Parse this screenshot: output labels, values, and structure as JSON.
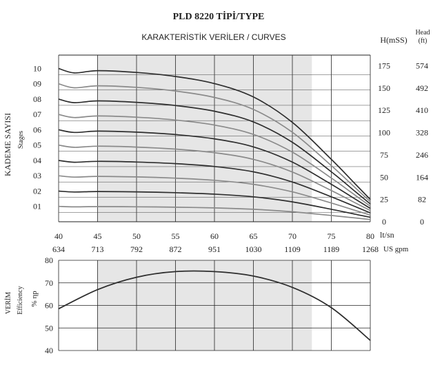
{
  "title": "PLD 8220 TİPİ/TYPE",
  "chart_data": [
    {
      "type": "line",
      "title": "KARAKTERİSTİK VERİLER / CURVES",
      "ylabel_left": "KADEME SAYISI",
      "ylabel_left_sub": "Stages",
      "ylabel_right_m": "H(mSS)",
      "ylabel_right_ft": "Head (ft)",
      "xlabel_lts": "lt/sn",
      "xlabel_gpm": "US gpm",
      "x_ticks_lts": [
        "40",
        "45",
        "50",
        "55",
        "60",
        "65",
        "70",
        "75",
        "80"
      ],
      "x_ticks_gpm": [
        "634",
        "713",
        "792",
        "872",
        "951",
        "1030",
        "1109",
        "1189",
        "1268"
      ],
      "h_ticks_m": [
        "175",
        "150",
        "125",
        "100",
        "75",
        "50",
        "25",
        "0"
      ],
      "h_ticks_ft": [
        "574",
        "492",
        "410",
        "328",
        "246",
        "164",
        "82",
        "0"
      ],
      "stage_labels": [
        "10",
        "09",
        "08",
        "07",
        "06",
        "05",
        "04",
        "03",
        "02",
        "01"
      ],
      "xlim": [
        40,
        80
      ],
      "ylim": [
        0,
        187
      ],
      "highlight_range": [
        45,
        72.5
      ],
      "grid": true,
      "series": [
        {
          "name": "10",
          "x": [
            40,
            42,
            45,
            50,
            55,
            60,
            65,
            70,
            75,
            78,
            80
          ],
          "y": [
            172.0,
            167.0,
            169.5,
            167.5,
            163.0,
            155.0,
            140.0,
            111.5,
            70.0,
            43.0,
            25.0
          ]
        },
        {
          "name": "09",
          "x": [
            40,
            42,
            45,
            50,
            55,
            60,
            65,
            70,
            75,
            78,
            80
          ],
          "y": [
            154.8,
            150.3,
            152.5,
            150.8,
            146.7,
            139.5,
            126.0,
            100.4,
            63.0,
            38.7,
            22.5
          ]
        },
        {
          "name": "08",
          "x": [
            40,
            42,
            45,
            50,
            55,
            60,
            65,
            70,
            75,
            78,
            80
          ],
          "y": [
            137.6,
            133.6,
            135.6,
            134.0,
            130.4,
            124.0,
            112.0,
            89.2,
            56.0,
            34.4,
            20.0
          ]
        },
        {
          "name": "07",
          "x": [
            40,
            42,
            45,
            50,
            55,
            60,
            65,
            70,
            75,
            78,
            80
          ],
          "y": [
            120.4,
            116.9,
            118.7,
            117.3,
            114.1,
            108.5,
            98.0,
            78.1,
            49.0,
            30.1,
            17.5
          ]
        },
        {
          "name": "06",
          "x": [
            40,
            42,
            45,
            50,
            55,
            60,
            65,
            70,
            75,
            78,
            80
          ],
          "y": [
            103.2,
            100.2,
            101.7,
            100.5,
            97.8,
            93.0,
            84.0,
            66.9,
            42.0,
            25.8,
            15.0
          ]
        },
        {
          "name": "05",
          "x": [
            40,
            42,
            45,
            50,
            55,
            60,
            65,
            70,
            75,
            78,
            80
          ],
          "y": [
            86.0,
            83.5,
            84.8,
            83.8,
            81.5,
            77.5,
            70.0,
            55.8,
            35.0,
            21.5,
            12.5
          ]
        },
        {
          "name": "04",
          "x": [
            40,
            42,
            45,
            50,
            55,
            60,
            65,
            70,
            75,
            78,
            80
          ],
          "y": [
            68.8,
            66.8,
            67.8,
            67.0,
            65.2,
            62.0,
            56.0,
            44.6,
            28.0,
            17.2,
            10.0
          ]
        },
        {
          "name": "03",
          "x": [
            40,
            42,
            45,
            50,
            55,
            60,
            65,
            70,
            75,
            78,
            80
          ],
          "y": [
            51.6,
            50.1,
            50.9,
            50.3,
            48.9,
            46.5,
            42.0,
            33.5,
            21.0,
            12.9,
            7.5
          ]
        },
        {
          "name": "02",
          "x": [
            40,
            42,
            45,
            50,
            55,
            60,
            65,
            70,
            75,
            78,
            80
          ],
          "y": [
            34.4,
            33.4,
            33.9,
            33.5,
            32.6,
            31.0,
            28.0,
            22.3,
            14.0,
            8.6,
            5.0
          ]
        },
        {
          "name": "01",
          "x": [
            40,
            42,
            45,
            50,
            55,
            60,
            65,
            70,
            75,
            78,
            80
          ],
          "y": [
            17.2,
            16.7,
            17.0,
            16.8,
            16.3,
            15.5,
            14.0,
            11.2,
            7.0,
            4.3,
            2.5
          ]
        }
      ]
    },
    {
      "type": "line",
      "ylabel": "VERİM",
      "ylabel_sub": "Efficiency",
      "ylabel_unit": "% ηp",
      "y_ticks": [
        "80",
        "70",
        "60",
        "50",
        "40"
      ],
      "xlim": [
        40,
        80
      ],
      "ylim": [
        40,
        80
      ],
      "highlight_range": [
        45,
        72.5
      ],
      "grid": true,
      "series": [
        {
          "name": "",
          "x": [
            40,
            45,
            50,
            55,
            60,
            65,
            70,
            75,
            80
          ],
          "y": [
            58.5,
            67.0,
            72.5,
            75.0,
            75.0,
            73.0,
            68.0,
            59.0,
            44.5
          ]
        }
      ]
    }
  ],
  "colors": {
    "shade": "#e6e6e6",
    "grid": "#222222",
    "curve_dark": "#2e2e2e",
    "curve_light": "#8a8a8a"
  }
}
